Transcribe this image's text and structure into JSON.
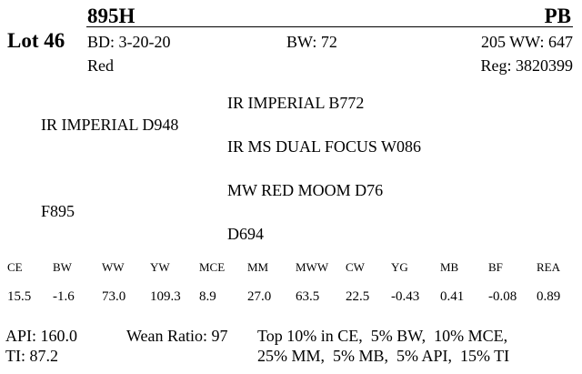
{
  "header": {
    "lot": "Lot 46",
    "id": "895H",
    "tag": "PB",
    "birth_date": "BD: 3-20-20",
    "birth_weight": "BW: 72",
    "weaning_weight": "205 WW: 647",
    "color": "Red",
    "registration": "Reg: 3820399"
  },
  "pedigree": {
    "sire": "IR IMPERIAL D948",
    "sire_sire": "IR IMPERIAL B772",
    "sire_dam": "IR MS DUAL FOCUS W086",
    "dam": "F895",
    "dam_sire": "MW RED MOOM D76",
    "dam_dam": "D694"
  },
  "epd": {
    "headers": [
      "CE",
      "BW",
      "WW",
      "YW",
      "MCE",
      "MM",
      "MWW",
      "CW",
      "YG",
      "MB",
      "BF",
      "REA"
    ],
    "values": [
      "15.5",
      "-1.6",
      "73.0",
      "109.3",
      "8.9",
      "27.0",
      "63.5",
      "22.5",
      "-0.43",
      "0.41",
      "-0.08",
      "0.89"
    ]
  },
  "footer": {
    "api": "API: 160.0",
    "ti": "TI: 87.2",
    "wean_ratio": "Wean Ratio: 97",
    "rank_line_1": "Top 10% in CE,  5% BW,  10% MCE,",
    "rank_line_2": "25% MM,  5% MB,  5% API,  15% TI"
  }
}
